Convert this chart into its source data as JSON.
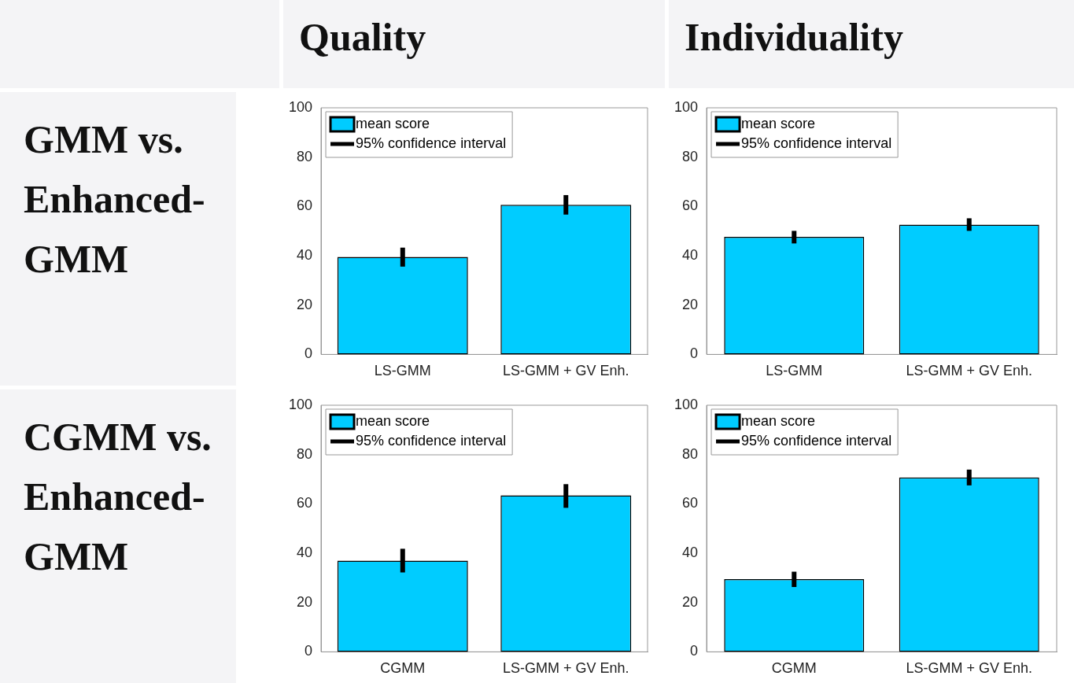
{
  "chart_data": [
    {
      "type": "bar",
      "title": "Quality",
      "ylabel": "GMM vs. Enhanced-GMM",
      "categories": [
        "LS-GMM",
        "LS-GMM + GV Enh."
      ],
      "series": [
        {
          "name": "mean score",
          "color": "#00ccff",
          "values": [
            39.5,
            60.7
          ],
          "errors": [
            [
              35.6,
              43.3
            ],
            [
              56.7,
              64.6
            ]
          ]
        }
      ],
      "annotations": [
        "95% confidence interval"
      ],
      "ylim": [
        0,
        100
      ],
      "yticks": [
        0,
        20,
        40,
        60,
        80,
        100
      ],
      "legend": "top left"
    },
    {
      "type": "bar",
      "title": "Individuality",
      "categories": [
        "LS-GMM",
        "LS-GMM + GV Enh."
      ],
      "series": [
        {
          "name": "mean score",
          "color": "#00ccff",
          "values": [
            47.7,
            52.6
          ],
          "errors": [
            [
              45,
              50.1
            ],
            [
              50.1,
              55.2
            ]
          ]
        }
      ],
      "annotations": [
        "95% confidence interval"
      ],
      "ylim": [
        0,
        100
      ],
      "yticks": [
        0,
        20,
        40,
        60,
        80,
        100
      ],
      "legend": "top left"
    },
    {
      "type": "bar",
      "ylabel": "CGMM vs. Enhanced-GMM",
      "categories": [
        "CGMM",
        "LS-GMM + GV Enh."
      ],
      "series": [
        {
          "name": "mean score",
          "color": "#00ccff",
          "values": [
            37,
            63.5
          ],
          "errors": [
            [
              32.2,
              41.8
            ],
            [
              58.4,
              68
            ]
          ]
        }
      ],
      "annotations": [
        "95% confidence interval"
      ],
      "ylim": [
        0,
        100
      ],
      "yticks": [
        0,
        20,
        40,
        60,
        80,
        100
      ],
      "legend": "top left"
    },
    {
      "type": "bar",
      "categories": [
        "CGMM",
        "LS-GMM + GV Enh."
      ],
      "series": [
        {
          "name": "mean score",
          "color": "#00ccff",
          "values": [
            29.5,
            70.7
          ],
          "errors": [
            [
              26.3,
              32.5
            ],
            [
              67.5,
              73.9
            ]
          ]
        }
      ],
      "annotations": [
        "95% confidence interval"
      ],
      "ylim": [
        0,
        100
      ],
      "yticks": [
        0,
        20,
        40,
        60,
        80,
        100
      ],
      "legend": "top left"
    }
  ]
}
